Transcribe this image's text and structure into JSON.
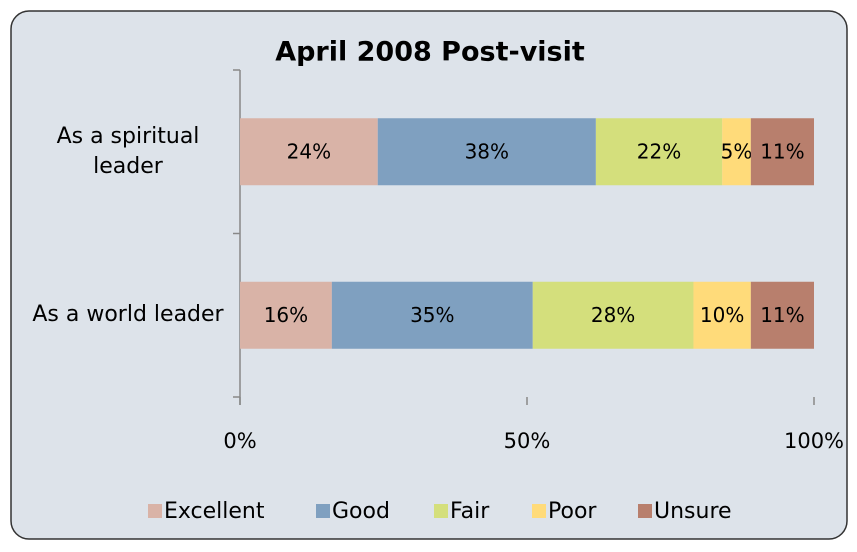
{
  "chart_data": {
    "type": "stacked-bar-horizontal",
    "title": "April 2008 Post-visit",
    "categories": [
      "As a spiritual leader",
      "As a world leader"
    ],
    "series": [
      {
        "name": "Excellent",
        "color": "#d9b3a7",
        "values": [
          24,
          16
        ],
        "value_labels": [
          "24%",
          "16%"
        ]
      },
      {
        "name": "Good",
        "color": "#7fa0c0",
        "values": [
          38,
          35
        ],
        "value_labels": [
          "38%",
          "35%"
        ]
      },
      {
        "name": "Fair",
        "color": "#d4df7c",
        "values": [
          22,
          28
        ],
        "value_labels": [
          "22%",
          "28%"
        ]
      },
      {
        "name": "Poor",
        "color": "#ffdb7a",
        "values": [
          5,
          10
        ],
        "value_labels": [
          "5%",
          "10%"
        ]
      },
      {
        "name": "Unsure",
        "color": "#b87f6d",
        "values": [
          11,
          11
        ],
        "value_labels": [
          "11%",
          "11%"
        ]
      }
    ],
    "xlim": [
      0,
      100
    ],
    "xticks": [
      {
        "value": 0,
        "label": "0%"
      },
      {
        "value": 50,
        "label": "50%"
      },
      {
        "value": 100,
        "label": "100%"
      }
    ],
    "legend": "bottom"
  }
}
